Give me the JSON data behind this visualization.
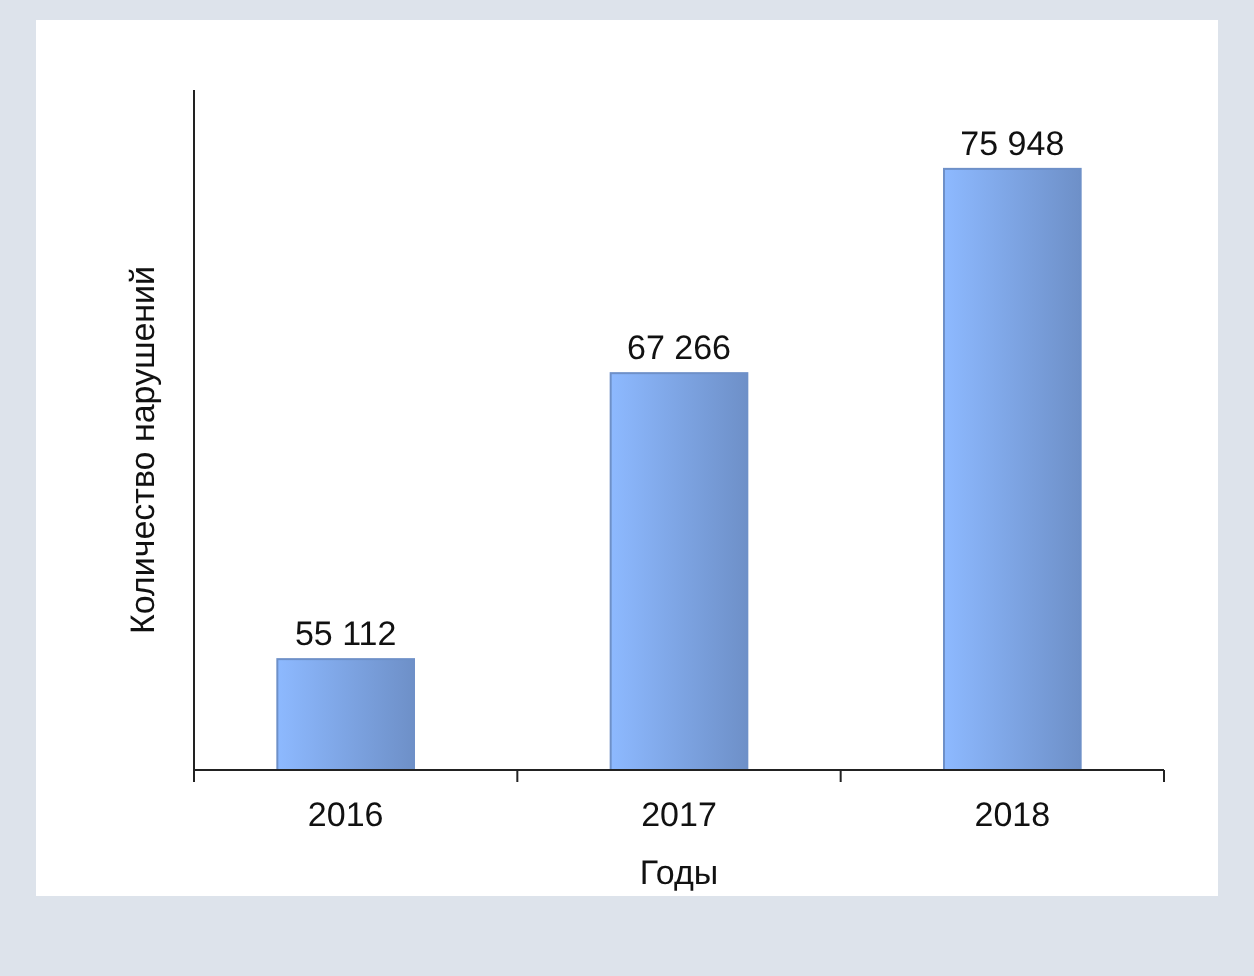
{
  "chart_data": {
    "type": "bar",
    "xlabel": "Годы",
    "ylabel": "Количество нарушений",
    "categories": [
      "2016",
      "2017",
      "2018"
    ],
    "values": [
      55112,
      67266,
      75948
    ],
    "color": "#6e90c8",
    "value_labels": [
      "55 112",
      "67 266",
      "75 948"
    ],
    "ylim": [
      50400,
      79300
    ],
    "tick_labels": "x"
  }
}
